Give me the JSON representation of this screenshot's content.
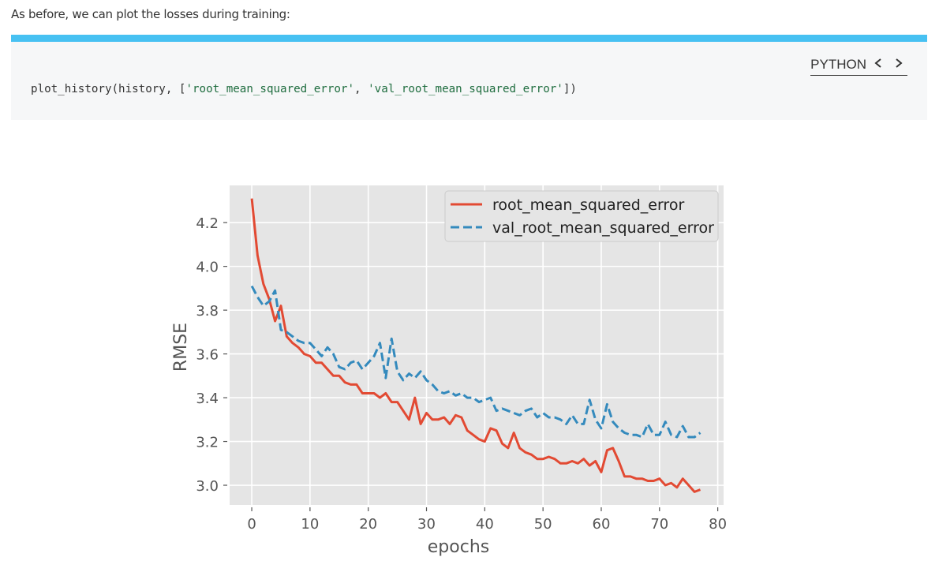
{
  "intro_text": "As before, we can plot the losses during training:",
  "code": {
    "language": "PYTHON",
    "prev_icon": "chevron-left-icon",
    "next_icon": "chevron-right-icon",
    "prefix": "plot_history(history, [",
    "arg1": "'root_mean_squared_error'",
    "sep": ", ",
    "arg2": "'val_root_mean_squared_error'",
    "suffix": "])",
    "accent_color": "#47c1f2"
  },
  "chart_data": {
    "type": "line",
    "title": "",
    "xlabel": "epochs",
    "ylabel": "RMSE",
    "xlim": [
      -3.8,
      81
    ],
    "ylim": [
      2.91,
      4.37
    ],
    "xticks": [
      0,
      10,
      20,
      30,
      40,
      50,
      60,
      70,
      80
    ],
    "yticks": [
      3.0,
      3.2,
      3.4,
      3.6,
      3.8,
      4.0,
      4.2
    ],
    "ytick_labels": [
      "3.0",
      "3.2",
      "3.4",
      "3.6",
      "3.8",
      "4.0",
      "4.2"
    ],
    "grid": true,
    "legend_position": "upper right",
    "style": "ggplot",
    "x": [
      0,
      1,
      2,
      3,
      4,
      5,
      6,
      7,
      8,
      9,
      10,
      11,
      12,
      13,
      14,
      15,
      16,
      17,
      18,
      19,
      20,
      21,
      22,
      23,
      24,
      25,
      26,
      27,
      28,
      29,
      30,
      31,
      32,
      33,
      34,
      35,
      36,
      37,
      38,
      39,
      40,
      41,
      42,
      43,
      44,
      45,
      46,
      47,
      48,
      49,
      50,
      51,
      52,
      53,
      54,
      55,
      56,
      57,
      58,
      59,
      60,
      61,
      62,
      63,
      64,
      65,
      66,
      67,
      68,
      69,
      70,
      71,
      72,
      73,
      74,
      75,
      76,
      77
    ],
    "series": [
      {
        "name": "root_mean_squared_error",
        "color": "#e24a33",
        "linestyle": "solid",
        "values": [
          4.31,
          4.05,
          3.92,
          3.85,
          3.75,
          3.82,
          3.68,
          3.65,
          3.63,
          3.6,
          3.59,
          3.56,
          3.56,
          3.53,
          3.5,
          3.5,
          3.47,
          3.46,
          3.46,
          3.42,
          3.42,
          3.42,
          3.4,
          3.42,
          3.38,
          3.38,
          3.34,
          3.3,
          3.4,
          3.28,
          3.33,
          3.3,
          3.3,
          3.31,
          3.28,
          3.32,
          3.31,
          3.25,
          3.23,
          3.21,
          3.2,
          3.26,
          3.25,
          3.19,
          3.17,
          3.24,
          3.17,
          3.15,
          3.14,
          3.12,
          3.12,
          3.13,
          3.12,
          3.1,
          3.1,
          3.11,
          3.1,
          3.12,
          3.09,
          3.11,
          3.06,
          3.16,
          3.17,
          3.11,
          3.04,
          3.04,
          3.03,
          3.03,
          3.02,
          3.02,
          3.03,
          3.0,
          3.01,
          2.99,
          3.03,
          3.0,
          2.97,
          2.98
        ]
      },
      {
        "name": "val_root_mean_squared_error",
        "color": "#348abd",
        "linestyle": "dashed",
        "values": [
          3.91,
          3.86,
          3.82,
          3.84,
          3.89,
          3.71,
          3.7,
          3.68,
          3.66,
          3.65,
          3.65,
          3.62,
          3.59,
          3.63,
          3.6,
          3.54,
          3.53,
          3.56,
          3.57,
          3.53,
          3.56,
          3.59,
          3.65,
          3.49,
          3.67,
          3.52,
          3.48,
          3.51,
          3.49,
          3.52,
          3.48,
          3.46,
          3.43,
          3.42,
          3.43,
          3.41,
          3.42,
          3.4,
          3.4,
          3.38,
          3.39,
          3.4,
          3.34,
          3.35,
          3.34,
          3.33,
          3.32,
          3.34,
          3.35,
          3.31,
          3.33,
          3.31,
          3.31,
          3.3,
          3.28,
          3.32,
          3.28,
          3.28,
          3.39,
          3.3,
          3.26,
          3.37,
          3.29,
          3.26,
          3.24,
          3.23,
          3.23,
          3.22,
          3.28,
          3.23,
          3.23,
          3.29,
          3.23,
          3.22,
          3.27,
          3.22,
          3.22,
          3.24
        ]
      }
    ]
  }
}
